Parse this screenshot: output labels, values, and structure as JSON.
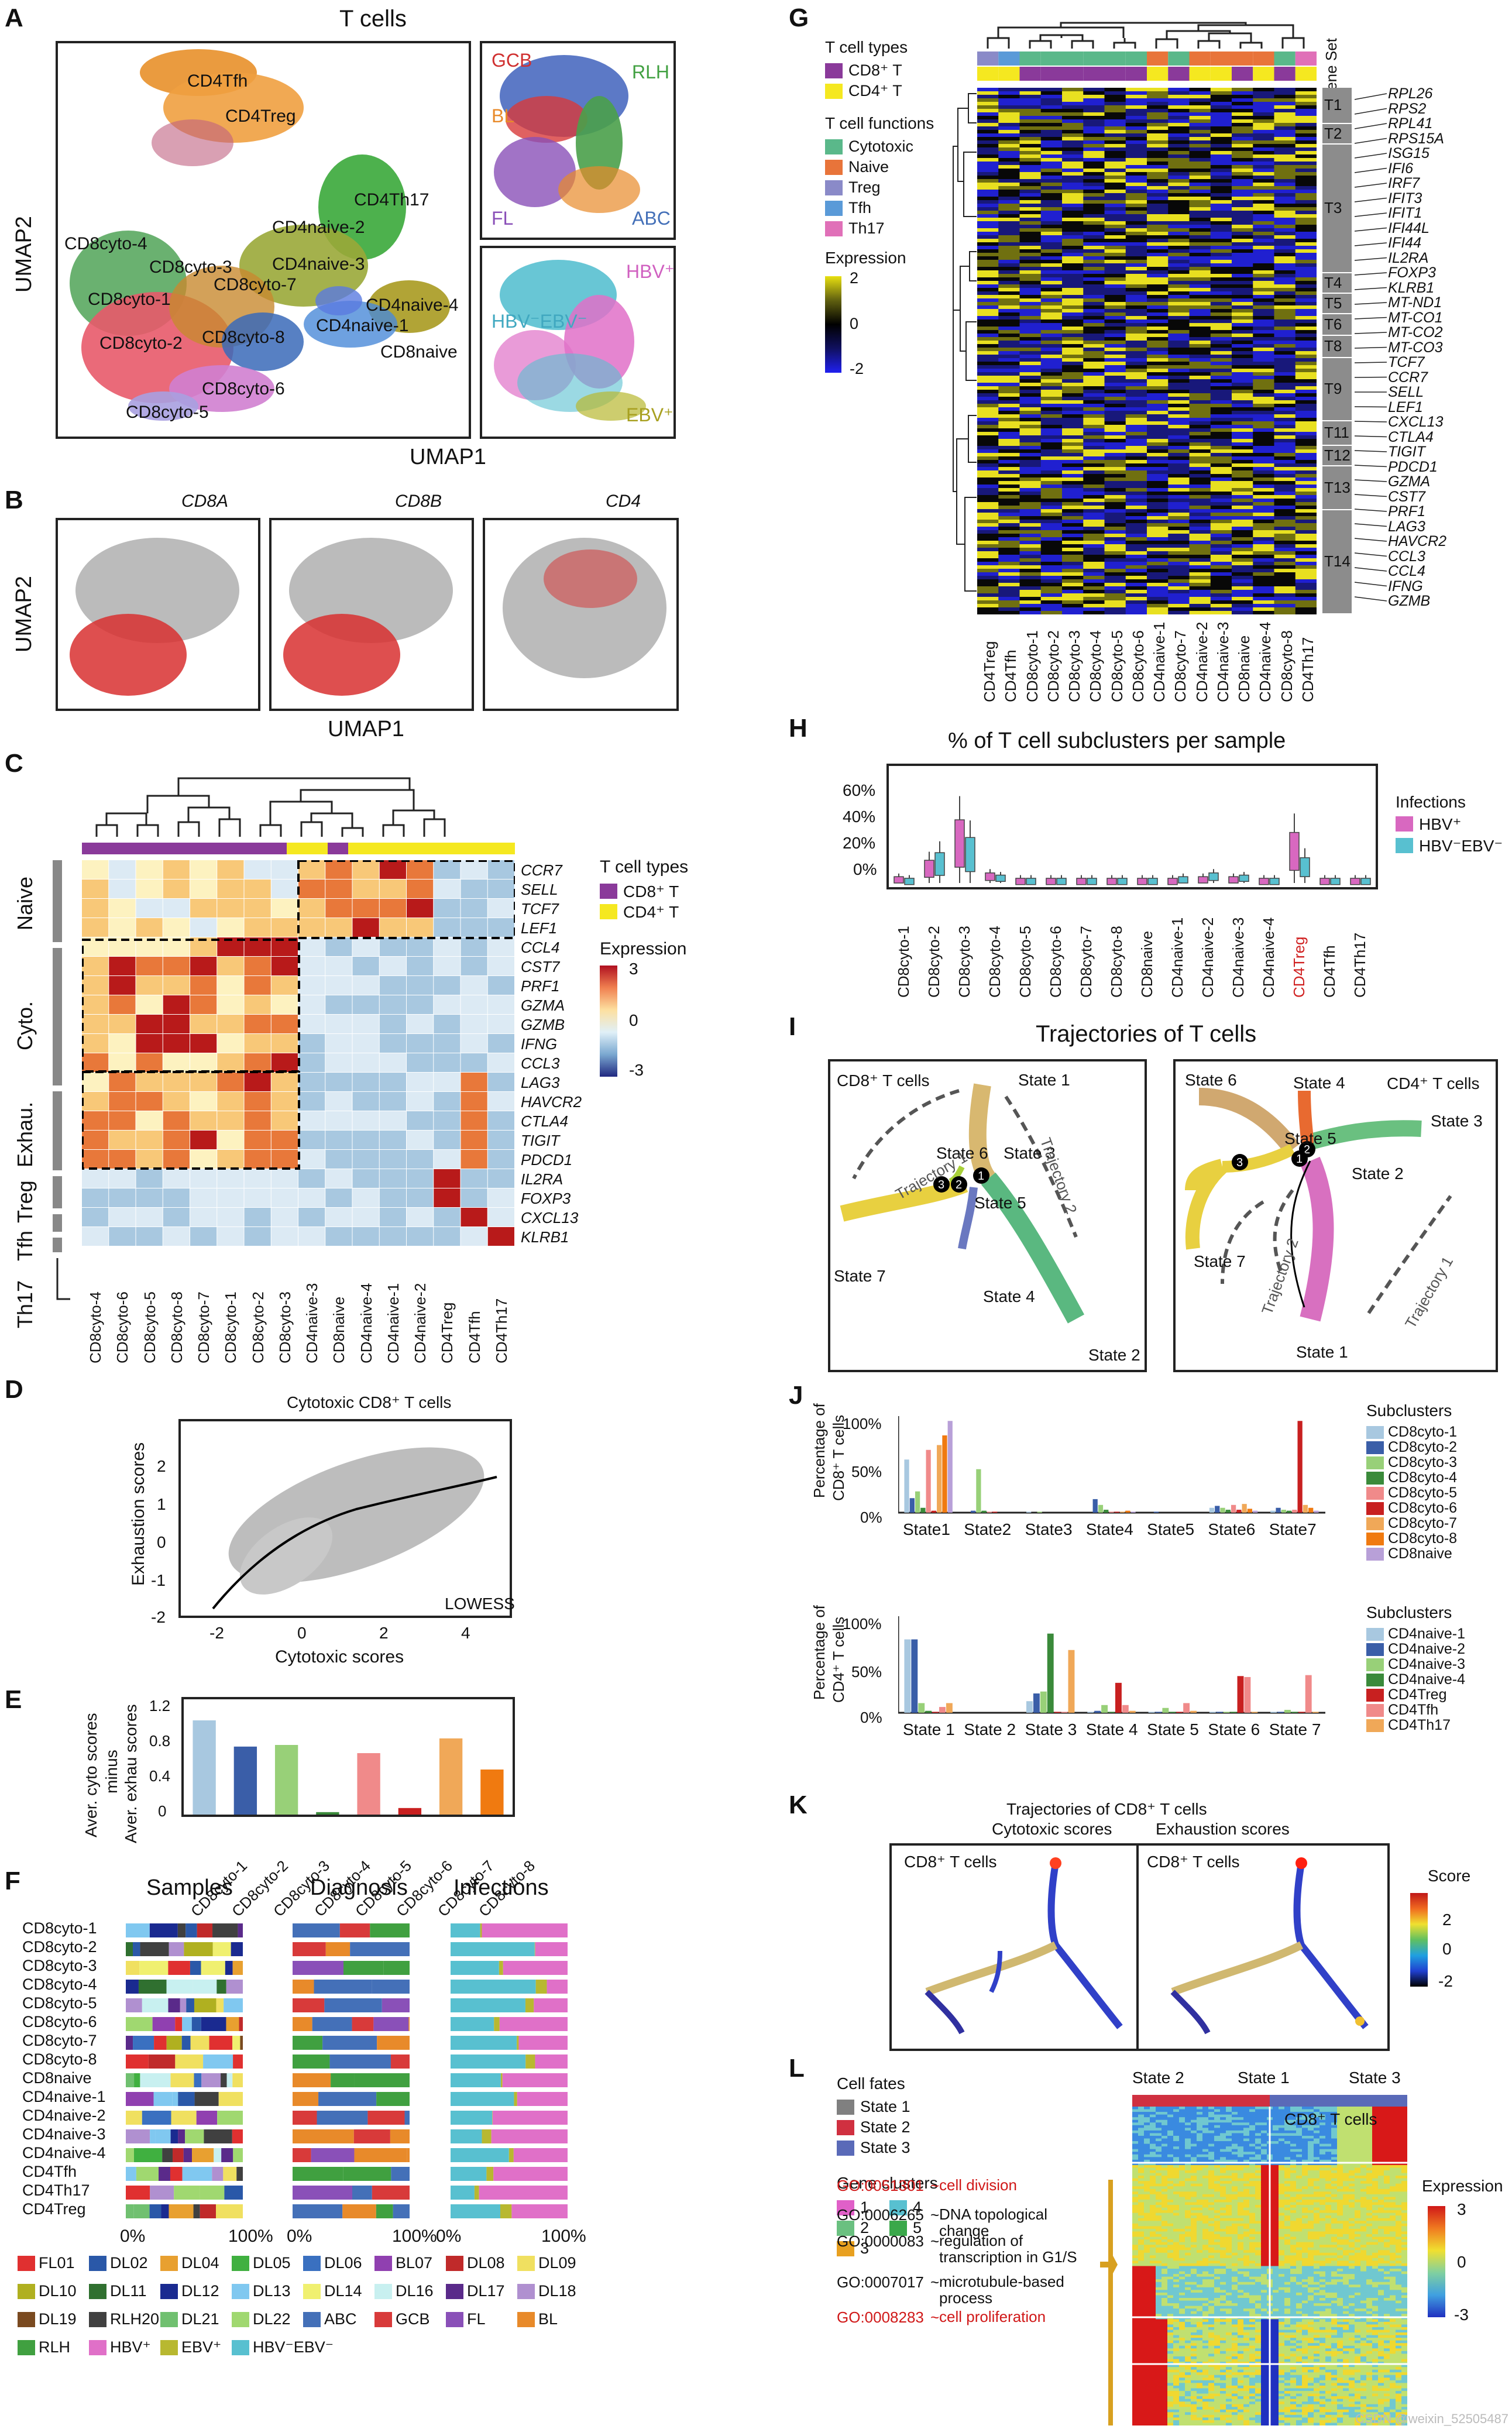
{
  "panels": {
    "A": "A",
    "B": "B",
    "C": "C",
    "D": "D",
    "E": "E",
    "F": "F",
    "G": "G",
    "H": "H",
    "I": "I",
    "J": "J",
    "K": "K",
    "L": "L"
  },
  "panelA": {
    "title": "T cells",
    "xlabel": "UMAP1",
    "ylabel": "UMAP2",
    "clusters": [
      "CD4Tfh",
      "CD4Treg",
      "CD4Th17",
      "CD4naive-2",
      "CD8cyto-4",
      "CD8cyto-3",
      "CD4naive-3",
      "CD8cyto-7",
      "CD4naive-4",
      "CD8cyto-1",
      "CD4naive-1",
      "CD8cyto-8",
      "CD8naive",
      "CD8cyto-2",
      "CD8cyto-6",
      "CD8cyto-5"
    ],
    "lymphoma": [
      "GCB",
      "RLH",
      "BL",
      "FL",
      "ABC"
    ],
    "infection": [
      "HBV⁺",
      "HBV⁻EBV⁻",
      "EBV⁺"
    ]
  },
  "panelB": {
    "genes": [
      "CD8A",
      "CD8B",
      "CD4"
    ],
    "xlabel": "UMAP1",
    "ylabel": "UMAP2"
  },
  "panelC": {
    "columns": [
      "CD8cyto-4",
      "CD8cyto-6",
      "CD8cyto-5",
      "CD8cyto-8",
      "CD8cyto-7",
      "CD8cyto-1",
      "CD8cyto-2",
      "CD8cyto-3",
      "CD4naive-3",
      "CD8naive",
      "CD4naive-4",
      "CD4naive-1",
      "CD4naive-2",
      "CD4Treg",
      "CD4Tfh",
      "CD4Th17"
    ],
    "genes": [
      "CCR7",
      "SELL",
      "TCF7",
      "LEF1",
      "CCL4",
      "CST7",
      "PRF1",
      "GZMA",
      "GZMB",
      "IFNG",
      "CCL3",
      "LAG3",
      "HAVCR2",
      "CTLA4",
      "TIGIT",
      "PDCD1",
      "IL2RA",
      "FOXP3",
      "CXCL13",
      "KLRB1"
    ],
    "groups": [
      "Naive",
      "Cyto.",
      "Exhau.",
      "Treg",
      "Tfh",
      "Th17"
    ],
    "legend_types_title": "T cell types",
    "legend_types": [
      "CD8⁺ T",
      "CD4⁺ T"
    ],
    "legend_expr_title": "Expression",
    "legend_expr_ticks": [
      "3",
      "0",
      "-3"
    ]
  },
  "panelD": {
    "title": "Cytotoxic CD8⁺ T cells",
    "xlabel": "Cytotoxic scores",
    "ylabel": "Exhaustion scores",
    "xticks": [
      "-2",
      "0",
      "2",
      "4"
    ],
    "yticks": [
      "2",
      "1",
      "0",
      "-1",
      "-2"
    ],
    "note": "LOWESS"
  },
  "panelE": {
    "ylabel1": "Aver. cyto scores",
    "ylabel2": "minus",
    "ylabel3": "Aver. exhau scores",
    "yticks": [
      "1.2",
      "0.8",
      "0.4",
      "0"
    ]
  },
  "chart_data": [
    {
      "type": "bar",
      "categories": [
        "CD8cyto-1",
        "CD8cyto-2",
        "CD8cyto-3",
        "CD8cyto-4",
        "CD8cyto-5",
        "CD8cyto-6",
        "CD8cyto-7",
        "CD8cyto-8"
      ],
      "values": [
        1.15,
        0.83,
        0.85,
        0.03,
        0.75,
        0.08,
        0.93,
        0.55
      ],
      "colors": [
        "#a8c8e0",
        "#3a5ea8",
        "#98d078",
        "#3a8a3a",
        "#f08a8a",
        "#c82020",
        "#f0a858",
        "#f07a10"
      ],
      "ylabel": "Aver. cyto scores minus Aver. exhau scores",
      "ylim": [
        0,
        1.3
      ]
    },
    {
      "type": "bar",
      "title": "Percentage of CD8⁺ T cells",
      "categories": [
        "State1",
        "State2",
        "State3",
        "State4",
        "State5",
        "State6",
        "State7"
      ],
      "series": [
        {
          "name": "CD8cyto-1",
          "values": [
            55,
            0,
            1,
            0,
            0,
            5,
            2
          ]
        },
        {
          "name": "CD8cyto-2",
          "values": [
            15,
            2,
            0,
            14,
            1,
            7,
            5
          ]
        },
        {
          "name": "CD8cyto-3",
          "values": [
            22,
            45,
            1,
            8,
            0,
            5,
            3
          ]
        },
        {
          "name": "CD8cyto-4",
          "values": [
            5,
            2,
            0,
            3,
            0,
            3,
            2
          ]
        },
        {
          "name": "CD8cyto-5",
          "values": [
            65,
            1,
            0,
            1,
            0,
            8,
            3
          ]
        },
        {
          "name": "CD8cyto-6",
          "values": [
            2,
            1,
            0,
            1,
            0,
            3,
            95
          ]
        },
        {
          "name": "CD8cyto-7",
          "values": [
            70,
            0,
            0,
            1,
            0,
            9,
            8
          ]
        },
        {
          "name": "CD8cyto-8",
          "values": [
            80,
            0,
            0,
            2,
            0,
            4,
            5
          ]
        },
        {
          "name": "CD8naive",
          "values": [
            95,
            0,
            0,
            1,
            0,
            2,
            2
          ]
        }
      ],
      "ylim": [
        0,
        100
      ]
    },
    {
      "type": "bar",
      "title": "Percentage of CD4⁺ T cells",
      "categories": [
        "State 1",
        "State 2",
        "State 3",
        "State 4",
        "State 5",
        "State 6",
        "State 7"
      ],
      "series": [
        {
          "name": "CD4naive-1",
          "values": [
            76,
            0,
            12,
            1,
            1,
            1,
            1
          ]
        },
        {
          "name": "CD4naive-2",
          "values": [
            76,
            0,
            20,
            2,
            1,
            1,
            1
          ]
        },
        {
          "name": "CD4naive-3",
          "values": [
            10,
            0,
            22,
            8,
            5,
            1,
            3
          ]
        },
        {
          "name": "CD4naive-4",
          "values": [
            2,
            0,
            82,
            1,
            1,
            1,
            1
          ]
        },
        {
          "name": "CD4Treg",
          "values": [
            1,
            0,
            1,
            31,
            1,
            38,
            1
          ]
        },
        {
          "name": "CD4Tfh",
          "values": [
            6,
            0,
            1,
            8,
            10,
            37,
            39
          ]
        },
        {
          "name": "CD4Th17",
          "values": [
            10,
            0,
            65,
            2,
            2,
            1,
            1
          ]
        }
      ],
      "ylim": [
        0,
        100
      ]
    }
  ],
  "panelF": {
    "headers": [
      "Samples",
      "Diagnosis",
      "Infections"
    ],
    "rows": [
      "CD8cyto-1",
      "CD8cyto-2",
      "CD8cyto-3",
      "CD8cyto-4",
      "CD8cyto-5",
      "CD8cyto-6",
      "CD8cyto-7",
      "CD8cyto-8",
      "CD8naive",
      "CD4naive-1",
      "CD4naive-2",
      "CD4naive-3",
      "CD4naive-4",
      "CD4Tfh",
      "CD4Th17",
      "CD4Treg"
    ],
    "xticks": [
      "0%",
      "100%"
    ],
    "legend": [
      {
        "label": "FL01",
        "color": "#e03030"
      },
      {
        "label": "DL02",
        "color": "#2a58a8"
      },
      {
        "label": "DL04",
        "color": "#e8a030"
      },
      {
        "label": "DL05",
        "color": "#40b040"
      },
      {
        "label": "DL06",
        "color": "#3a70c0"
      },
      {
        "label": "BL07",
        "color": "#9040b0"
      },
      {
        "label": "DL08",
        "color": "#c02a2a"
      },
      {
        "label": "DL09",
        "color": "#f0e060"
      },
      {
        "label": "DL10",
        "color": "#b0b020"
      },
      {
        "label": "DL11",
        "color": "#307030"
      },
      {
        "label": "DL12",
        "color": "#1a2a90"
      },
      {
        "label": "DL13",
        "color": "#80c8f0"
      },
      {
        "label": "DL14",
        "color": "#f0f070"
      },
      {
        "label": "DL16",
        "color": "#c8f0f0"
      },
      {
        "label": "DL17",
        "color": "#5a2a8a"
      },
      {
        "label": "DL18",
        "color": "#b090d0"
      },
      {
        "label": "DL19",
        "color": "#7a4a20"
      },
      {
        "label": "RLH20",
        "color": "#404040"
      },
      {
        "label": "DL21",
        "color": "#70c070"
      },
      {
        "label": "DL22",
        "color": "#a0d870"
      },
      {
        "label": "ABC",
        "color": "#4470b8"
      },
      {
        "label": "GCB",
        "color": "#d83a3a"
      },
      {
        "label": "FL",
        "color": "#8a50b8"
      },
      {
        "label": "BL",
        "color": "#e88a2a"
      },
      {
        "label": "RLH",
        "color": "#40a040"
      },
      {
        "label": "HBV⁺",
        "color": "#e070c8"
      },
      {
        "label": "EBV⁺",
        "color": "#b8b830"
      },
      {
        "label": "HBV⁻EBV⁻",
        "color": "#58c0d0"
      }
    ]
  },
  "panelG": {
    "legend_types_title": "T cell types",
    "legend_types": [
      "CD8⁺ T",
      "CD4⁺ T"
    ],
    "legend_func_title": "T cell functions",
    "legend_funcs": [
      "Cytotoxic",
      "Naive",
      "Treg",
      "Tfh",
      "Th17"
    ],
    "legend_expr_title": "Expression",
    "legend_expr_ticks": [
      "2",
      "0",
      "-2"
    ],
    "gene_set_title": "Gene Set",
    "gene_sets": [
      "T1",
      "T2",
      "T3",
      "T4",
      "T5",
      "T6",
      "T8",
      "T9",
      "T11",
      "T12",
      "T13",
      "T14"
    ],
    "genes": [
      "RPL26",
      "RPS2",
      "RPL41",
      "RPS15A",
      "ISG15",
      "IFI6",
      "IRF7",
      "IFIT3",
      "IFIT1",
      "IFI44L",
      "IFI44",
      "IL2RA",
      "FOXP3",
      "KLRB1",
      "MT-ND1",
      "MT-CO1",
      "MT-CO2",
      "MT-CO3",
      "TCF7",
      "CCR7",
      "SELL",
      "LEF1",
      "CXCL13",
      "CTLA4",
      "TIGIT",
      "PDCD1",
      "GZMA",
      "CST7",
      "PRF1",
      "LAG3",
      "HAVCR2",
      "CCL3",
      "CCL4",
      "IFNG",
      "GZMB"
    ],
    "columns": [
      "CD4Treg",
      "CD4Tfh",
      "CD8cyto-1",
      "CD8cyto-2",
      "CD8cyto-3",
      "CD8cyto-4",
      "CD8cyto-5",
      "CD8cyto-6",
      "CD4naive-1",
      "CD8cyto-7",
      "CD4naive-2",
      "CD4naive-3",
      "CD8naive",
      "CD4naive-4",
      "CD8cyto-8",
      "CD4Th17"
    ]
  },
  "panelH": {
    "title": "% of T cell subclusters per sample",
    "yticks": [
      "60%",
      "40%",
      "20%",
      "0%"
    ],
    "categories": [
      "CD8cyto-1",
      "CD8cyto-2",
      "CD8cyto-3",
      "CD8cyto-4",
      "CD8cyto-5",
      "CD8cyto-6",
      "CD8cyto-7",
      "CD8cyto-8",
      "CD8naive",
      "CD4naive-1",
      "CD4naive-2",
      "CD4naive-3",
      "CD4naive-4",
      "CD4Treg",
      "CD4Tfh",
      "CD4Th17"
    ],
    "legend_title": "Infections",
    "legend": [
      "HBV⁺",
      "HBV⁻EBV⁻"
    ]
  },
  "panelI": {
    "title": "Trajectories of T cells",
    "cd8": {
      "label": "CD8⁺ T cells",
      "states": [
        "State 1",
        "State 2",
        "State 3",
        "State 4",
        "State 5",
        "State 6",
        "State 7"
      ],
      "trajectories": [
        "Trajectory 1",
        "Trajectory 2"
      ]
    },
    "cd4": {
      "label": "CD4⁺ T cells",
      "states": [
        "State 1",
        "State 2",
        "State 3",
        "State 4",
        "State 5",
        "State 6",
        "State 7"
      ],
      "trajectories": [
        "Trajectory 1",
        "Trajectory 2"
      ]
    }
  },
  "panelJ": {
    "cd8_ylabel1": "Percentage of",
    "cd8_ylabel2": "CD8⁺ T cells",
    "cd4_ylabel1": "Percentage of",
    "cd4_ylabel2": "CD4⁺ T cells",
    "yticks": [
      "100%",
      "50%",
      "0%"
    ],
    "legend_title": "Subclusters",
    "cd8_colors": [
      "#a8c8e0",
      "#3a5ea8",
      "#98d078",
      "#3a8a3a",
      "#f08a8a",
      "#c82020",
      "#f0a858",
      "#f07a10",
      "#b8a0d8"
    ],
    "cd4_colors": [
      "#a8c8e0",
      "#3a5ea8",
      "#98d078",
      "#3a8a3a",
      "#c82020",
      "#f08a8a",
      "#f0a858"
    ]
  },
  "panelK": {
    "title": "Trajectories of CD8⁺ T cells",
    "sub1": "Cytotoxic scores",
    "sub2": "Exhaustion scores",
    "cell_label": "CD8⁺ T cells",
    "legend_title": "Score",
    "legend_ticks": [
      "2",
      "0",
      "-2"
    ]
  },
  "panelL": {
    "fates_title": "Cell fates",
    "fates": [
      "State 1",
      "State 2",
      "State 3"
    ],
    "clusters_title": "Gene clusters",
    "clusters": [
      "1",
      "2",
      "3",
      "4",
      "5"
    ],
    "col_labels": [
      "State 2",
      "State 1",
      "State 3"
    ],
    "cell_label": "CD8⁺ T cells",
    "legend_title": "Expression",
    "legend_ticks": [
      "3",
      "0",
      "-3"
    ],
    "go_terms": [
      {
        "id": "GO:0051301",
        "desc": "cell division",
        "red": true
      },
      {
        "id": "GO:0006265",
        "desc": "DNA topological change",
        "red": false
      },
      {
        "id": "GO:0000083",
        "desc": "regulation of transcription in G1/S",
        "red": false
      },
      {
        "id": "GO:0007017",
        "desc": "microtubule-based process",
        "red": false
      },
      {
        "id": "GO:0008283",
        "desc": "cell proliferation",
        "red": true
      }
    ]
  },
  "colors": {
    "cd8": "#8a3a9a",
    "cd4": "#f5e820",
    "cytotoxic": "#5ab88a",
    "naive": "#e8743a",
    "treg": "#8a8ac8",
    "tfh": "#5a9ad8",
    "th17": "#e070b8",
    "hbv_pos": "#d868c0",
    "hbv_neg": "#58c0d0"
  },
  "watermark": "CSDN @weixin_52505487"
}
